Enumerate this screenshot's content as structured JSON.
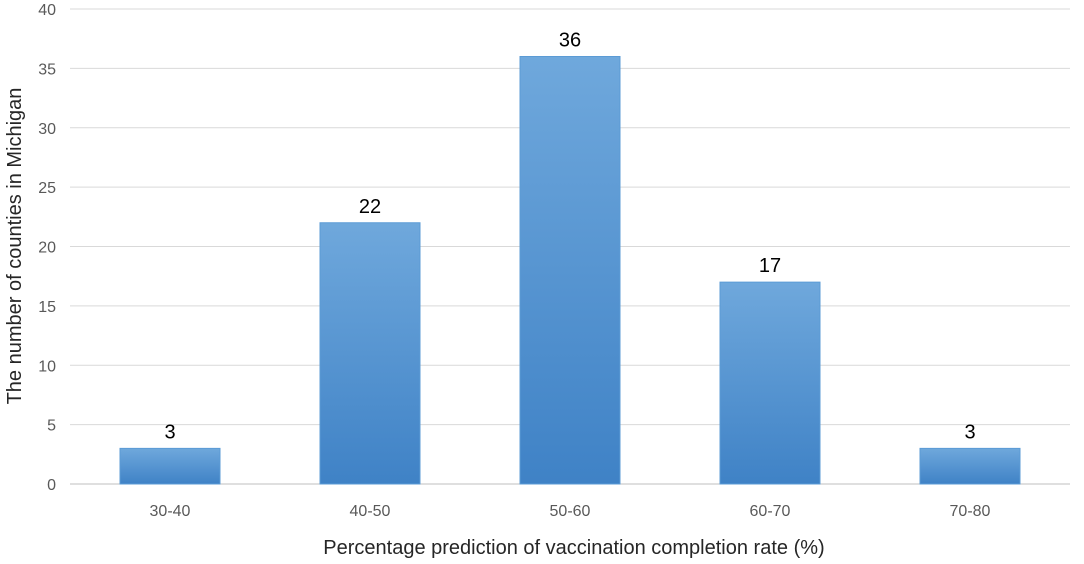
{
  "chart_data": {
    "type": "bar",
    "title": "",
    "categories": [
      "30-40",
      "40-50",
      "50-60",
      "60-70",
      "70-80"
    ],
    "values": [
      3,
      22,
      36,
      17,
      3
    ],
    "data_labels": [
      "3",
      "22",
      "36",
      "17",
      "3"
    ],
    "xlabel": "Percentage prediction of vaccination completion rate (%)",
    "ylabel": "The number of counties in Michigan",
    "ylim": [
      0,
      40
    ],
    "yticks": [
      0,
      5,
      10,
      15,
      20,
      25,
      30,
      35,
      40
    ],
    "grid": true,
    "legend": "none",
    "colors": {
      "bar_top": "#6fa8dc",
      "bar_bottom": "#3f82c6"
    }
  }
}
